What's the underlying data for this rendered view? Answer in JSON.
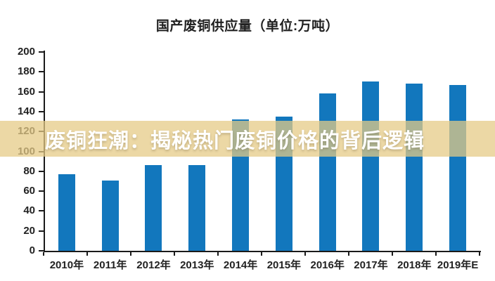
{
  "overlay": {
    "headline": "废铜狂潮：揭秘热门废铜价格的背后逻辑",
    "band_color": "rgba(229, 203, 133, 0.74)",
    "text_color": "#ffffff"
  },
  "chart_data": {
    "type": "bar",
    "title": "国产废铜供应量（单位:万吨）",
    "categories": [
      "2010年",
      "2011年",
      "2012年",
      "2013年",
      "2014年",
      "2015年",
      "2016年",
      "2017年",
      "2018年",
      "2019年E"
    ],
    "values": [
      77,
      71,
      86,
      86,
      132,
      135,
      158,
      170,
      168,
      167
    ],
    "unit": "万吨",
    "xlabel": "",
    "ylabel": "",
    "ylim": [
      0,
      200
    ],
    "y_ticks": [
      0,
      20,
      40,
      60,
      80,
      100,
      120,
      140,
      160,
      180,
      200
    ],
    "grid": false,
    "legend": false,
    "bar_color": "#1277bd",
    "axis_color": "#1a1a1a",
    "tick_label_color": "#222222"
  }
}
